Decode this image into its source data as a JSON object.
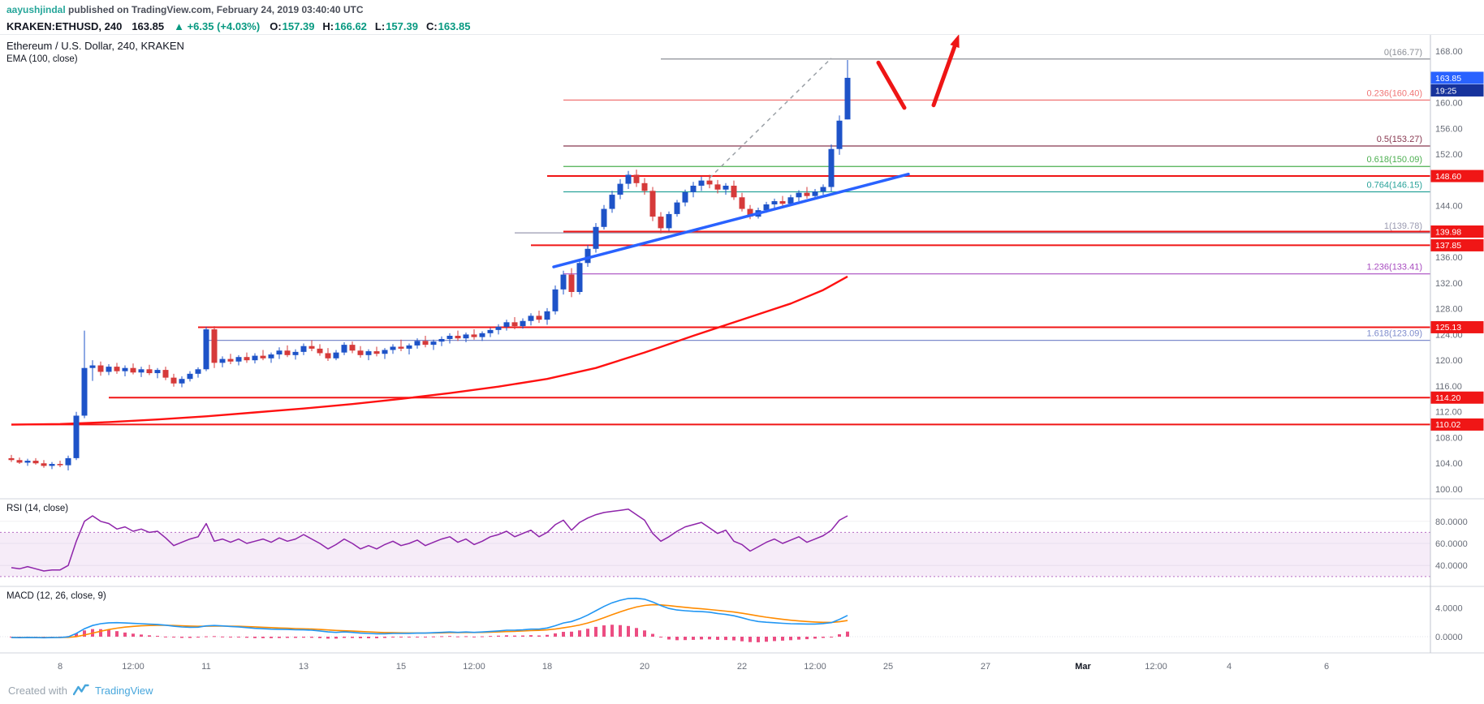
{
  "attribution": {
    "username": "aayushjindal",
    "rest": " published on TradingView.com, February 24, 2019 03:40:40 UTC"
  },
  "symbol_bar": {
    "symbol": "KRAKEN:ETHUSD, 240",
    "last": "163.85",
    "change_icon": "▲",
    "change": "+6.35 (+4.03%)",
    "ohlc": [
      {
        "label": "O:",
        "value": "157.39"
      },
      {
        "label": "H:",
        "value": "166.62"
      },
      {
        "label": "L:",
        "value": "157.39"
      },
      {
        "label": "C:",
        "value": "163.85"
      }
    ]
  },
  "footer": {
    "created_with": "Created with",
    "brand": "TradingView"
  },
  "chart_data": {
    "type": "candlestick",
    "title": "Ethereum / U.S. Dollar, 240, KRAKEN",
    "interval": "240",
    "exchange": "KRAKEN",
    "legend": {
      "main": "Ethereum / U.S. Dollar, 240, KRAKEN",
      "ema": "EMA (100, close)",
      "rsi": "RSI (14, close)",
      "macd": "MACD (12, 26, close, 9)"
    },
    "price_axis": {
      "ylim": [
        100,
        168
      ],
      "ticks": [
        168,
        160,
        156,
        152,
        144,
        136,
        132,
        128,
        124,
        120,
        116,
        112,
        108,
        104,
        100
      ]
    },
    "axis_tags": [
      {
        "label": "163.85",
        "price": 163.85,
        "color": "#2962ff",
        "name": "last-price-tag"
      },
      {
        "label": "19:25",
        "color": "#17339c",
        "below_prev": true,
        "name": "bar-countdown-tag"
      },
      {
        "label": "148.60",
        "price": 148.6,
        "color": "#f01616",
        "name": "hline-price-tag"
      },
      {
        "label": "139.98",
        "price": 139.98,
        "color": "#f01616",
        "name": "hline-price-tag"
      },
      {
        "label": "137.85",
        "price": 137.85,
        "color": "#f01616",
        "name": "hline-price-tag"
      },
      {
        "label": "125.13",
        "price": 125.13,
        "color": "#f01616",
        "name": "hline-price-tag"
      },
      {
        "label": "114.20",
        "price": 114.2,
        "color": "#f01616",
        "name": "hline-price-tag"
      },
      {
        "label": "110.02",
        "price": 110.02,
        "color": "#f01616",
        "name": "hline-price-tag"
      }
    ],
    "fib_levels": [
      {
        "label": "0(166.77)",
        "price": 166.77,
        "color": "#8c8f96",
        "start": 80
      },
      {
        "label": "0.236(160.40)",
        "price": 160.4,
        "color": "#f07575",
        "start": 68
      },
      {
        "label": "0.5(153.27)",
        "price": 153.27,
        "color": "#88374f",
        "start": 68
      },
      {
        "label": "0.618(150.09)",
        "price": 150.09,
        "color": "#4caf50",
        "start": 68
      },
      {
        "label": "0.764(146.15)",
        "price": 146.15,
        "color": "#2aa39a",
        "start": 68
      },
      {
        "label": "1(139.78)",
        "price": 139.78,
        "color": "#9a9ab0",
        "start": 62
      },
      {
        "label": "1.236(133.41)",
        "price": 133.41,
        "color": "#a84cc0",
        "start": 68
      },
      {
        "label": "1.618(123.09)",
        "price": 123.09,
        "color": "#7e8ccc",
        "start": 24
      }
    ],
    "hlines": [
      {
        "label": "148.60",
        "price": 148.6,
        "start": 66
      },
      {
        "label": "139.98",
        "price": 139.98,
        "start": 68
      },
      {
        "label": "137.85",
        "price": 137.85,
        "start": 64
      },
      {
        "label": "125.13",
        "price": 125.13,
        "start": 23
      },
      {
        "label": "114.20",
        "price": 114.2,
        "start": 12
      },
      {
        "label": "110.02",
        "price": 110.02,
        "start": 0
      }
    ],
    "ema": [
      [
        0,
        110.0
      ],
      [
        6,
        110.1
      ],
      [
        12,
        110.4
      ],
      [
        18,
        110.8
      ],
      [
        24,
        111.3
      ],
      [
        30,
        111.9
      ],
      [
        36,
        112.5
      ],
      [
        42,
        113.2
      ],
      [
        48,
        114.0
      ],
      [
        54,
        114.9
      ],
      [
        60,
        115.9
      ],
      [
        66,
        117.1
      ],
      [
        72,
        118.8
      ],
      [
        78,
        121.2
      ],
      [
        84,
        123.8
      ],
      [
        90,
        126.3
      ],
      [
        96,
        128.8
      ],
      [
        100,
        130.9
      ],
      [
        103,
        133.0
      ]
    ],
    "trendline": {
      "from": [
        66.8,
        134.5
      ],
      "to": [
        110.5,
        148.9
      ]
    },
    "dashed_line": {
      "from": [
        86,
        148.3
      ],
      "to": [
        101,
        166.9
      ]
    },
    "arrows": [
      {
        "from": [
          106.8,
          166.2
        ],
        "to": [
          110.0,
          159.2
        ],
        "head": false
      },
      {
        "from": [
          113.6,
          159.6
        ],
        "to": [
          116.5,
          169.8
        ],
        "head": true
      }
    ],
    "candles": [
      [
        104.8,
        105.3,
        104.2,
        104.5
      ],
      [
        104.5,
        104.9,
        103.9,
        104.1
      ],
      [
        104.1,
        104.7,
        103.6,
        104.4
      ],
      [
        104.4,
        104.8,
        103.8,
        104.0
      ],
      [
        104.0,
        104.5,
        103.3,
        103.6
      ],
      [
        103.6,
        104.2,
        103.1,
        103.9
      ],
      [
        103.9,
        104.4,
        103.4,
        103.7
      ],
      [
        103.7,
        105.2,
        102.9,
        104.8
      ],
      [
        104.8,
        112.0,
        104.5,
        111.4
      ],
      [
        111.4,
        124.6,
        111.0,
        118.8
      ],
      [
        118.8,
        120.0,
        116.8,
        119.2
      ],
      [
        119.2,
        119.8,
        117.6,
        118.2
      ],
      [
        118.2,
        119.4,
        117.7,
        119.0
      ],
      [
        119.0,
        119.6,
        117.9,
        118.3
      ],
      [
        118.3,
        119.2,
        117.5,
        118.8
      ],
      [
        118.8,
        119.5,
        117.8,
        118.1
      ],
      [
        118.1,
        119.0,
        117.4,
        118.6
      ],
      [
        118.6,
        119.3,
        117.7,
        118.0
      ],
      [
        118.0,
        118.8,
        117.2,
        118.5
      ],
      [
        118.5,
        119.0,
        116.9,
        117.3
      ],
      [
        117.3,
        117.9,
        115.9,
        116.4
      ],
      [
        116.4,
        117.5,
        115.8,
        117.1
      ],
      [
        117.1,
        118.3,
        116.7,
        117.9
      ],
      [
        117.9,
        118.9,
        117.3,
        118.6
      ],
      [
        118.6,
        125.2,
        118.3,
        124.8
      ],
      [
        124.8,
        125.3,
        118.8,
        119.6
      ],
      [
        119.6,
        120.6,
        118.9,
        120.2
      ],
      [
        120.2,
        121.0,
        119.4,
        119.8
      ],
      [
        119.8,
        120.8,
        119.2,
        120.5
      ],
      [
        120.5,
        121.2,
        119.6,
        120.0
      ],
      [
        120.0,
        121.1,
        119.5,
        120.7
      ],
      [
        120.7,
        121.6,
        120.0,
        120.3
      ],
      [
        120.3,
        121.2,
        119.6,
        120.9
      ],
      [
        120.9,
        122.0,
        120.2,
        121.5
      ],
      [
        121.5,
        122.3,
        120.5,
        120.8
      ],
      [
        120.8,
        121.7,
        120.1,
        121.3
      ],
      [
        121.3,
        122.6,
        120.8,
        122.2
      ],
      [
        122.2,
        123.1,
        121.4,
        121.8
      ],
      [
        121.8,
        122.5,
        120.7,
        121.1
      ],
      [
        121.1,
        121.9,
        119.9,
        120.3
      ],
      [
        120.3,
        121.6,
        120.0,
        121.2
      ],
      [
        121.2,
        122.8,
        120.8,
        122.4
      ],
      [
        122.4,
        122.9,
        121.1,
        121.5
      ],
      [
        121.5,
        122.2,
        120.4,
        120.8
      ],
      [
        120.8,
        121.7,
        120.0,
        121.4
      ],
      [
        121.4,
        122.1,
        120.6,
        121.0
      ],
      [
        121.0,
        121.9,
        120.2,
        121.6
      ],
      [
        121.6,
        122.5,
        121.0,
        122.1
      ],
      [
        122.1,
        123.2,
        121.4,
        121.8
      ],
      [
        121.8,
        122.6,
        120.9,
        122.3
      ],
      [
        122.3,
        123.4,
        121.8,
        123.0
      ],
      [
        123.0,
        123.8,
        122.0,
        122.4
      ],
      [
        122.4,
        123.2,
        121.6,
        122.9
      ],
      [
        122.9,
        123.7,
        122.2,
        123.3
      ],
      [
        123.3,
        124.2,
        122.6,
        123.8
      ],
      [
        123.8,
        124.6,
        123.0,
        123.4
      ],
      [
        123.4,
        124.3,
        122.8,
        124.0
      ],
      [
        124.0,
        124.8,
        123.2,
        123.6
      ],
      [
        123.6,
        124.5,
        123.0,
        124.2
      ],
      [
        124.2,
        125.0,
        123.6,
        124.7
      ],
      [
        124.7,
        125.6,
        124.0,
        125.2
      ],
      [
        125.2,
        126.3,
        124.6,
        125.9
      ],
      [
        125.9,
        126.7,
        124.8,
        125.3
      ],
      [
        125.3,
        126.5,
        124.9,
        126.1
      ],
      [
        126.1,
        127.3,
        125.4,
        126.9
      ],
      [
        126.9,
        127.7,
        125.8,
        126.3
      ],
      [
        126.3,
        128.1,
        125.5,
        127.6
      ],
      [
        127.6,
        131.6,
        127.1,
        131.0
      ],
      [
        131.0,
        133.9,
        130.2,
        133.3
      ],
      [
        133.3,
        134.3,
        129.8,
        130.6
      ],
      [
        130.6,
        135.6,
        130.2,
        135.1
      ],
      [
        135.1,
        137.9,
        134.5,
        137.3
      ],
      [
        137.3,
        141.3,
        136.7,
        140.7
      ],
      [
        140.7,
        144.1,
        140.3,
        143.5
      ],
      [
        143.5,
        146.3,
        142.9,
        145.7
      ],
      [
        145.7,
        148.1,
        145.0,
        147.4
      ],
      [
        147.4,
        149.4,
        146.6,
        148.8
      ],
      [
        148.8,
        149.6,
        146.9,
        147.5
      ],
      [
        147.5,
        148.3,
        145.7,
        146.3
      ],
      [
        146.3,
        146.9,
        141.6,
        142.3
      ],
      [
        142.3,
        143.0,
        139.7,
        140.5
      ],
      [
        140.5,
        143.1,
        140.1,
        142.7
      ],
      [
        142.7,
        144.9,
        142.3,
        144.5
      ],
      [
        144.5,
        146.5,
        143.9,
        146.1
      ],
      [
        146.1,
        147.7,
        145.3,
        147.1
      ],
      [
        147.1,
        148.5,
        146.3,
        147.9
      ],
      [
        147.9,
        148.8,
        146.7,
        147.3
      ],
      [
        147.3,
        148.0,
        145.9,
        146.5
      ],
      [
        146.5,
        147.5,
        145.7,
        147.1
      ],
      [
        147.1,
        147.9,
        144.9,
        145.3
      ],
      [
        145.3,
        146.0,
        143.1,
        143.5
      ],
      [
        143.5,
        144.1,
        141.9,
        142.3
      ],
      [
        142.3,
        143.7,
        142.0,
        143.3
      ],
      [
        143.3,
        144.6,
        142.9,
        144.2
      ],
      [
        144.2,
        145.1,
        143.5,
        144.7
      ],
      [
        144.7,
        145.5,
        143.9,
        144.3
      ],
      [
        144.3,
        145.7,
        144.0,
        145.3
      ],
      [
        145.3,
        146.4,
        144.7,
        146.0
      ],
      [
        146.0,
        146.9,
        145.1,
        145.5
      ],
      [
        145.5,
        146.6,
        145.1,
        146.2
      ],
      [
        146.2,
        147.3,
        145.7,
        146.9
      ],
      [
        146.9,
        153.5,
        146.2,
        152.8
      ],
      [
        152.8,
        158.0,
        151.9,
        157.2
      ],
      [
        157.39,
        166.62,
        157.39,
        163.85
      ]
    ],
    "rsi": {
      "values": [
        38,
        37,
        39,
        37,
        35,
        36,
        36,
        40,
        62,
        80,
        85,
        80,
        78,
        73,
        75,
        71,
        73,
        70,
        71,
        65,
        58,
        61,
        64,
        66,
        78,
        62,
        64,
        61,
        64,
        60,
        62,
        64,
        61,
        65,
        62,
        64,
        68,
        64,
        60,
        55,
        59,
        64,
        60,
        55,
        58,
        55,
        59,
        62,
        58,
        60,
        63,
        58,
        61,
        64,
        66,
        61,
        64,
        59,
        62,
        66,
        68,
        71,
        66,
        69,
        72,
        66,
        70,
        77,
        81,
        72,
        79,
        83,
        86,
        88,
        89,
        90,
        91,
        86,
        81,
        69,
        62,
        66,
        71,
        75,
        77,
        79,
        74,
        69,
        72,
        62,
        59,
        53,
        57,
        61,
        64,
        60,
        63,
        66,
        61,
        64,
        67,
        72,
        81,
        85
      ],
      "ticks": [
        80,
        60,
        40
      ],
      "band": [
        30,
        70
      ]
    },
    "macd": {
      "values": [
        -0.1,
        -0.14,
        -0.1,
        -0.12,
        -0.15,
        -0.12,
        -0.1,
        -0.02,
        0.45,
        1.1,
        1.55,
        1.8,
        1.92,
        1.95,
        1.9,
        1.85,
        1.8,
        1.74,
        1.7,
        1.6,
        1.45,
        1.35,
        1.3,
        1.32,
        1.5,
        1.55,
        1.5,
        1.42,
        1.36,
        1.26,
        1.16,
        1.1,
        1.05,
        1.02,
        1.0,
        0.96,
        0.95,
        0.9,
        0.8,
        0.66,
        0.6,
        0.66,
        0.6,
        0.5,
        0.45,
        0.4,
        0.4,
        0.45,
        0.45,
        0.46,
        0.5,
        0.5,
        0.55,
        0.6,
        0.65,
        0.6,
        0.65,
        0.6,
        0.65,
        0.72,
        0.8,
        0.9,
        0.9,
        0.95,
        1.05,
        1.05,
        1.2,
        1.52,
        1.9,
        2.1,
        2.5,
        3.0,
        3.6,
        4.2,
        4.7,
        5.05,
        5.3,
        5.32,
        5.2,
        4.82,
        4.32,
        3.92,
        3.7,
        3.6,
        3.52,
        3.48,
        3.4,
        3.22,
        3.08,
        2.9,
        2.62,
        2.32,
        2.1,
        2.0,
        1.94,
        1.86,
        1.8,
        1.78,
        1.75,
        1.76,
        1.82,
        1.95,
        2.4,
        2.95
      ],
      "ticks": [
        4,
        0
      ]
    },
    "time_ticks": [
      {
        "i": 6,
        "label": "8"
      },
      {
        "i": 15,
        "label": "12:00"
      },
      {
        "i": 24,
        "label": "11"
      },
      {
        "i": 36,
        "label": "13"
      },
      {
        "i": 48,
        "label": "15"
      },
      {
        "i": 57,
        "label": "12:00"
      },
      {
        "i": 66,
        "label": "18"
      },
      {
        "i": 78,
        "label": "20"
      },
      {
        "i": 90,
        "label": "22"
      },
      {
        "i": 99,
        "label": "12:00"
      },
      {
        "i": 108,
        "label": "25"
      },
      {
        "i": 120,
        "label": "27"
      },
      {
        "i": 132,
        "label": "Mar",
        "bold": true
      },
      {
        "i": 141,
        "label": "12:00"
      },
      {
        "i": 150,
        "label": "4"
      },
      {
        "i": 162,
        "label": "6"
      }
    ],
    "colors": {
      "up": "#1e53c8",
      "down": "#d63a3a",
      "ema": "#ff1111",
      "trendline": "#2962ff",
      "hline": "#f01616",
      "drawing": "#ee1515",
      "dashed": "#9aa0a6",
      "rsi": "#8e24aa",
      "rsi_band": "rgba(171,71,188,0.10)",
      "rsi_band_border": "#b76cc4",
      "macd": "#2196f3",
      "macd_signal": "#ff8b00",
      "macd_hist": "#ec4d82",
      "axis_text": "#686d78",
      "tag_text": "#ffffff",
      "separator": "#d1d4dc"
    }
  }
}
